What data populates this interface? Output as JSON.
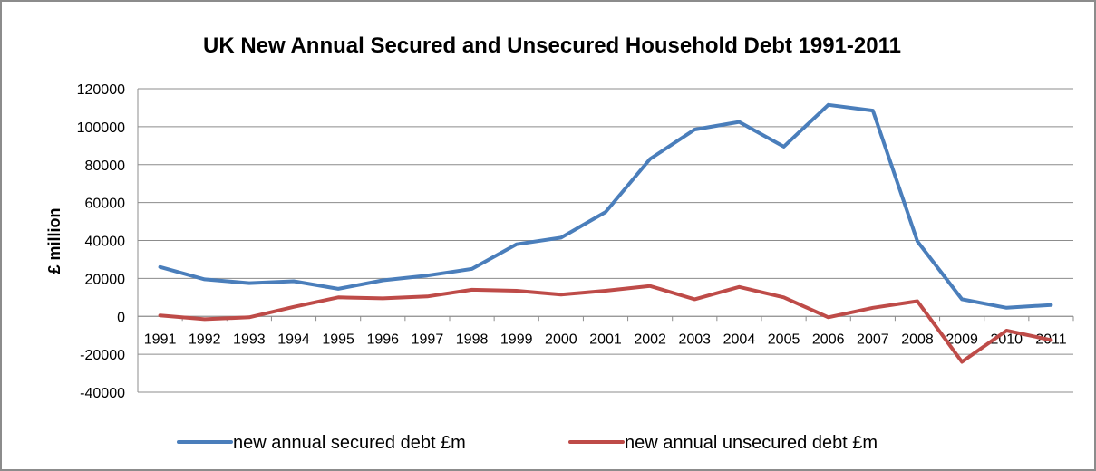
{
  "chart_data": {
    "type": "line",
    "title": "UK New Annual Secured and Unsecured Household Debt 1991-2011",
    "ylabel": "£ million",
    "xlabel": "",
    "ylim": [
      -40000,
      120000
    ],
    "yticks": [
      -40000,
      -20000,
      0,
      20000,
      40000,
      60000,
      80000,
      100000,
      120000
    ],
    "grid": true,
    "legend_position": "bottom",
    "categories": [
      "1991",
      "1992",
      "1993",
      "1994",
      "1995",
      "1996",
      "1997",
      "1998",
      "1999",
      "2000",
      "2001",
      "2002",
      "2003",
      "2004",
      "2005",
      "2006",
      "2007",
      "2008",
      "2009",
      "2010",
      "2011"
    ],
    "series": [
      {
        "name": "new annual secured debt £m",
        "color": "#4a7ebb",
        "values": [
          26000,
          19500,
          17500,
          18500,
          14500,
          19000,
          21500,
          25000,
          38000,
          41500,
          55000,
          83000,
          98500,
          102500,
          89500,
          111500,
          108500,
          39500,
          9000,
          4500,
          6000
        ]
      },
      {
        "name": "new annual unsecured debt £m",
        "color": "#be4b48",
        "values": [
          500,
          -1500,
          -500,
          5000,
          10000,
          9500,
          10500,
          14000,
          13500,
          11500,
          13500,
          16000,
          9000,
          15500,
          10000,
          -500,
          4500,
          8000,
          -24000,
          -7500,
          -12500
        ]
      }
    ]
  }
}
